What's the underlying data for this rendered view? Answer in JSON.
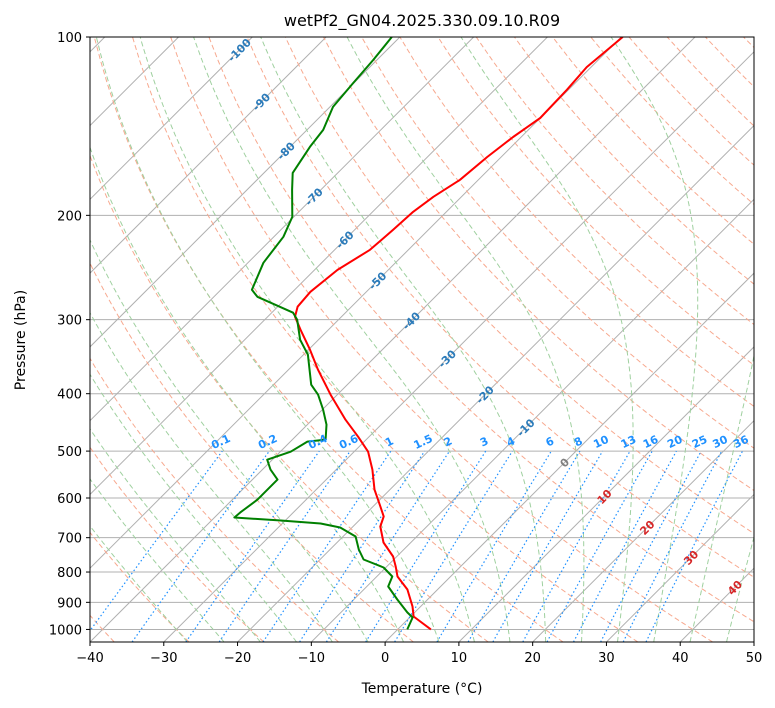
{
  "chart_data": {
    "type": "line",
    "subtype": "skew-t log-p",
    "title": "wetPf2_GN04.2025.330.09.10.R09",
    "xlabel": "Temperature (°C)",
    "ylabel": "Pressure (hPa)",
    "xlim": [
      -40,
      50
    ],
    "ylim": [
      1050,
      100
    ],
    "x_ticks": [
      -40,
      -30,
      -20,
      -10,
      0,
      10,
      20,
      30,
      40,
      50
    ],
    "y_ticks": [
      100,
      200,
      300,
      400,
      500,
      600,
      700,
      800,
      900,
      1000
    ],
    "grid": true,
    "colors": {
      "temperature": "#ff0000",
      "dewpoint": "#008000",
      "isotherm": "#b0b0b0",
      "dry_adiabat": "#f7a98f",
      "moist_adiabat": "#9fd09f",
      "mixing_ratio": "#1e90ff",
      "label_neg": "#2b7bba",
      "label_zero": "#808080",
      "label_pos": "#d62728"
    },
    "series": [
      {
        "name": "Temperature",
        "pressure": [
          100,
          112.4,
          122.8,
          137.0,
          147.5,
          159.4,
          174.2,
          186.1,
          197.3,
          211.6,
          228.7,
          247.2,
          269.2,
          285.3,
          296.6,
          311.9,
          337.2,
          364.4,
          401.6,
          442.5,
          472.7,
          501.1,
          537.2,
          580.7,
          620.3,
          644.8,
          670.3,
          713.3,
          753.2,
          783.0,
          814.0,
          856.1,
          914.5,
          950.8,
          1000
        ],
        "temperature": [
          -49.8,
          -50.6,
          -50.2,
          -50.0,
          -51.1,
          -51.9,
          -52.5,
          -53.8,
          -54.5,
          -54.8,
          -55.2,
          -56.9,
          -57.6,
          -57.3,
          -56.3,
          -53.8,
          -49.8,
          -46.0,
          -40.9,
          -35.5,
          -31.5,
          -28.1,
          -25.1,
          -22.1,
          -19.0,
          -17.2,
          -16.3,
          -13.7,
          -10.5,
          -8.8,
          -7.2,
          -4.1,
          -1.1,
          0.4,
          4.5
        ]
      },
      {
        "name": "Dewpoint",
        "pressure": [
          100,
          109.3,
          119.6,
          131.2,
          143.5,
          153.3,
          169.6,
          181.1,
          201.2,
          217.4,
          240.5,
          267.1,
          274.5,
          292.0,
          300.1,
          324.3,
          343.8,
          371.5,
          386.2,
          401.6,
          425.6,
          451.2,
          478.2,
          481.9,
          501.1,
          516.9,
          537.2,
          558.5,
          573.9,
          603.6,
          634.9,
          647.3,
          654.9,
          662.6,
          672.9,
          696.7,
          733.0,
          761.9,
          786.1,
          814.0,
          846.3,
          890.2,
          936.0,
          954.5,
          1000
        ],
        "temperature": [
          -81.1,
          -80.5,
          -80.1,
          -79.6,
          -77.8,
          -77.3,
          -76.1,
          -73.9,
          -70.2,
          -68.7,
          -67.9,
          -65.8,
          -64.1,
          -57.1,
          -55.6,
          -52.5,
          -49.4,
          -46.4,
          -44.9,
          -42.6,
          -39.9,
          -37.4,
          -35.5,
          -37.7,
          -38.6,
          -40.7,
          -38.9,
          -36.6,
          -36.6,
          -36.6,
          -37.2,
          -37.3,
          -30.6,
          -24.8,
          -21.6,
          -18.3,
          -16.1,
          -14.1,
          -10.3,
          -7.9,
          -7.1,
          -4.1,
          -1.0,
          0.4,
          1.3
        ]
      }
    ],
    "isotherm_labels": [
      {
        "text": "-100",
        "t": -100,
        "p": 105.2
      },
      {
        "text": "-90",
        "t": -90,
        "p": 128.7
      },
      {
        "text": "-80",
        "t": -80,
        "p": 155.7
      },
      {
        "text": "-70",
        "t": -70,
        "p": 186.1
      },
      {
        "text": "-60",
        "t": -60,
        "p": 219.9
      },
      {
        "text": "-50",
        "t": -50,
        "p": 257.9
      },
      {
        "text": "-40",
        "t": -40,
        "p": 301.3
      },
      {
        "text": "-30",
        "t": -30,
        "p": 349.2
      },
      {
        "text": "-20",
        "t": -20,
        "p": 401.6
      },
      {
        "text": "-10",
        "t": -10,
        "p": 456.5
      },
      {
        "text": "0",
        "t": 0,
        "p": 522.9
      },
      {
        "text": "10",
        "t": 10,
        "p": 596.7
      },
      {
        "text": "20",
        "t": 20,
        "p": 672.9
      },
      {
        "text": "30",
        "t": 30,
        "p": 756.1
      },
      {
        "text": "40",
        "t": 40,
        "p": 849.6
      }
    ],
    "mixing_ratio_labels": [
      "0.1",
      "0.2",
      "0.4",
      "0.6",
      "1",
      "1.5",
      "2",
      "3",
      "4",
      "6",
      "8",
      "10",
      "13",
      "16",
      "20",
      "25",
      "30",
      "36"
    ]
  }
}
